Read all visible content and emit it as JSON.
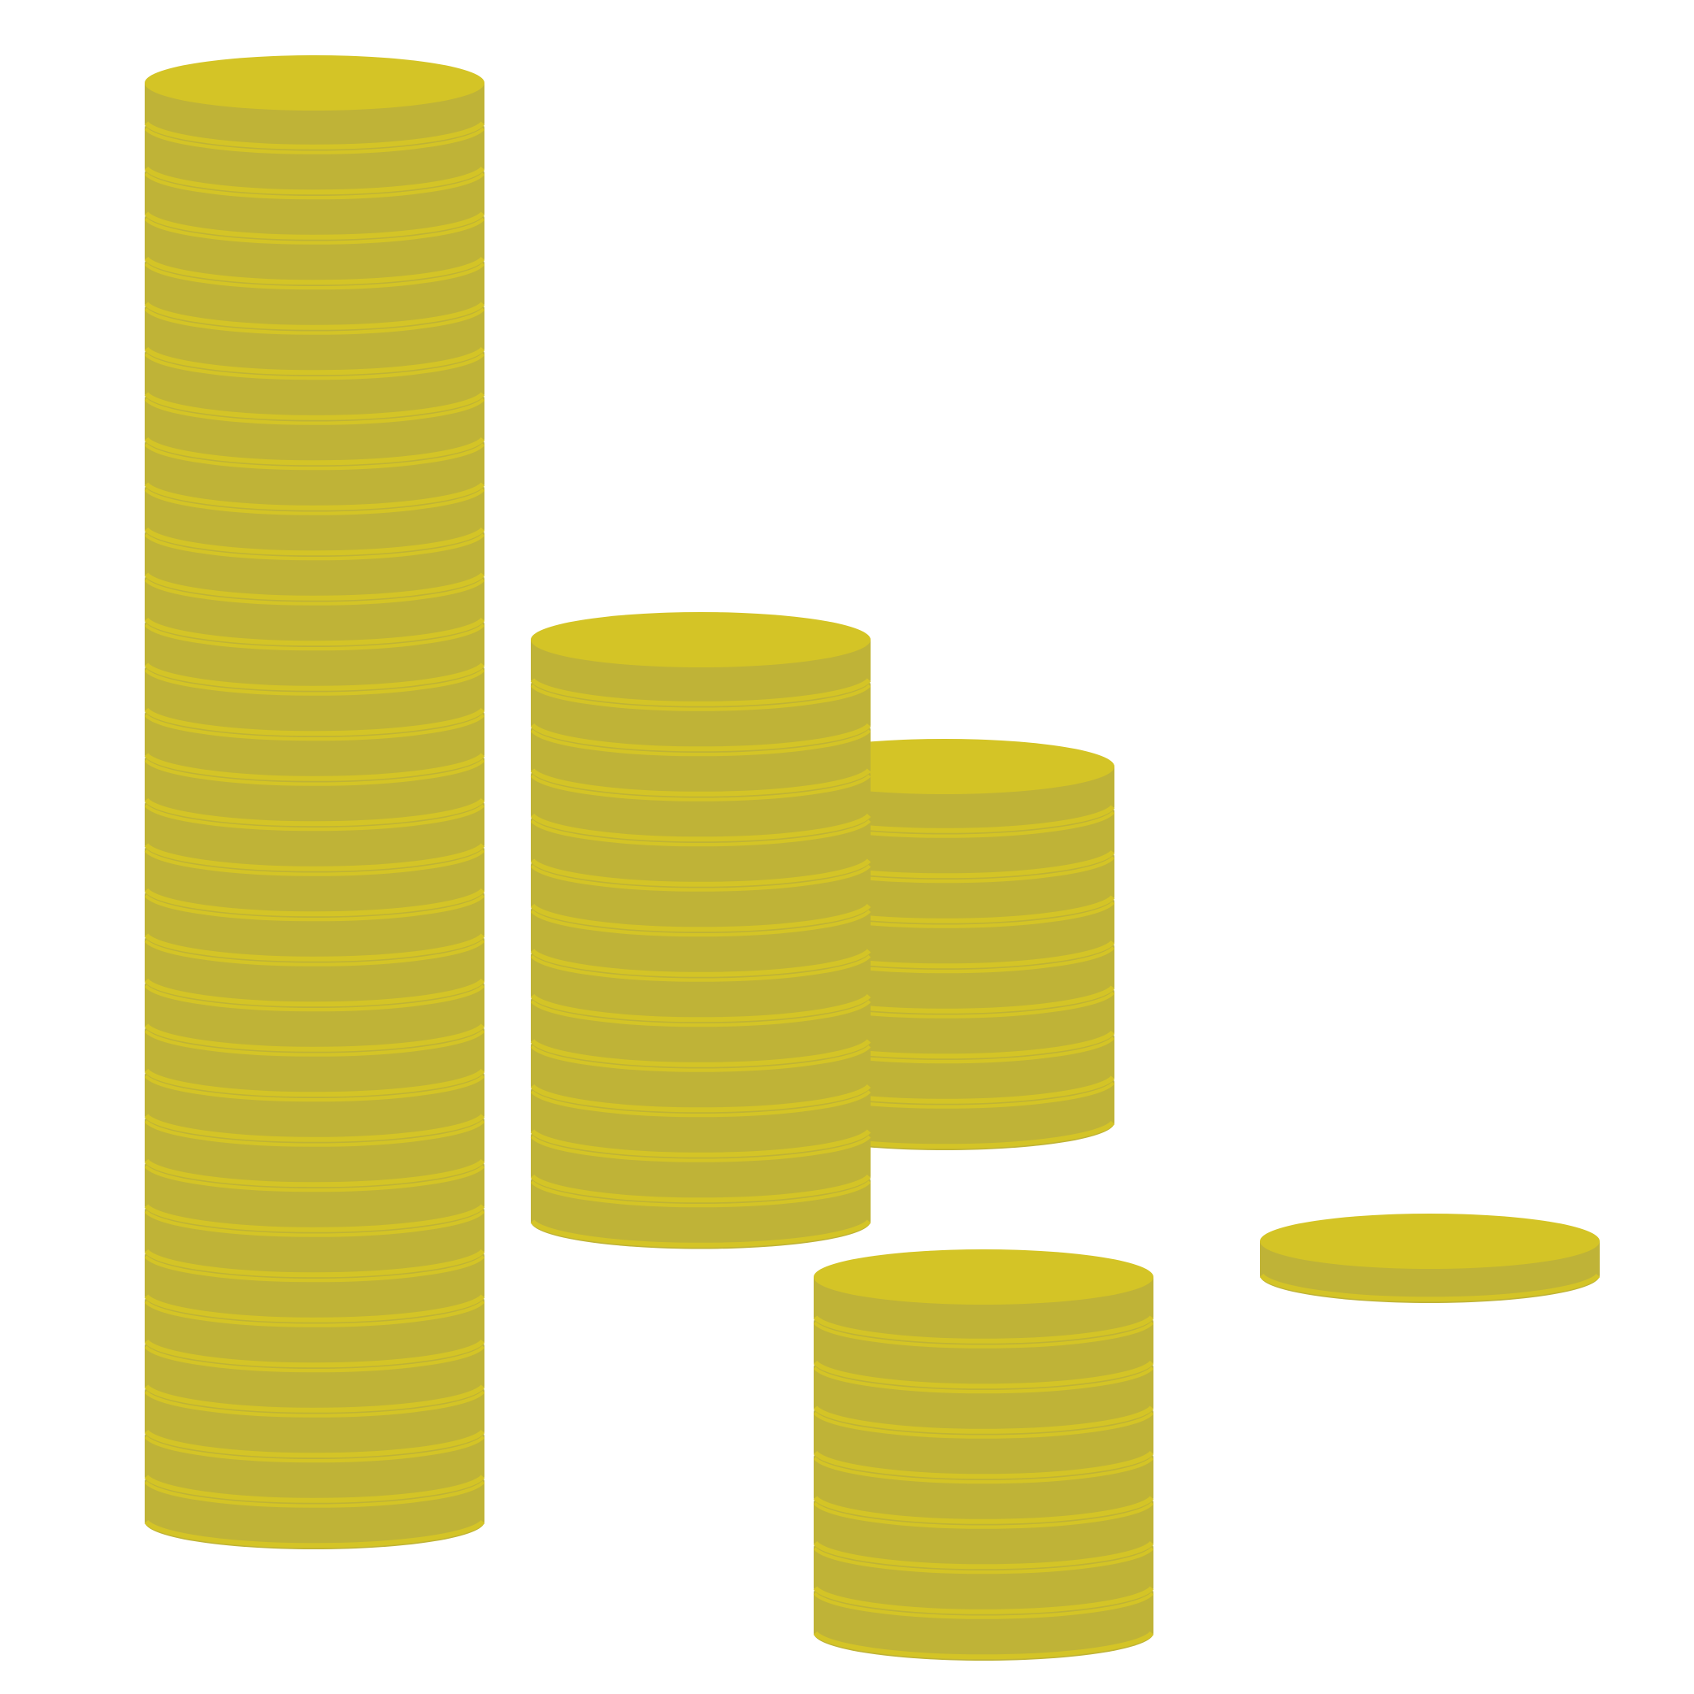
{
  "colors": {
    "background": "#ffffff",
    "coin_top": "#d4c426",
    "coin_side": "#bfb337",
    "coin_rim": "#d4c426"
  },
  "stacks": [
    {
      "name": "coin-stack-tall",
      "coins": 32
    },
    {
      "name": "coin-stack-middle-front",
      "coins": 13
    },
    {
      "name": "coin-stack-middle-back",
      "coins": 8
    },
    {
      "name": "coin-stack-bottom",
      "coins": 8
    },
    {
      "name": "coin-single",
      "coins": 1
    }
  ]
}
